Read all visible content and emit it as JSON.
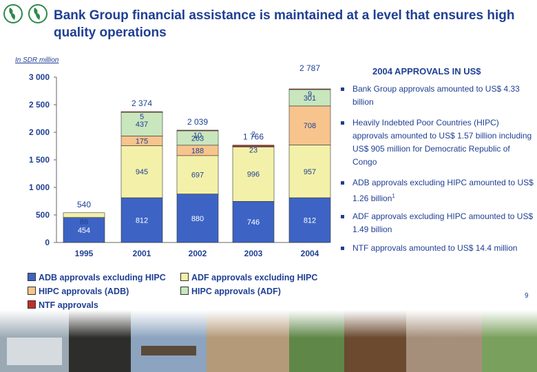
{
  "title": "Bank Group financial assistance is maintained at a level that ensures high quality operations",
  "chart_subtitle": "In SDR million",
  "page_number": "9",
  "chart_data": {
    "type": "bar",
    "stacked": true,
    "categories": [
      "1995",
      "2001",
      "2002",
      "2003",
      "2004"
    ],
    "ylim": [
      0,
      3000
    ],
    "yticks": [
      "0",
      "500",
      "1 000",
      "1 500",
      "2 000",
      "2 500",
      "3 000"
    ],
    "totals": [
      "540",
      "2 374",
      "2 039",
      "1 766",
      "2 787"
    ],
    "series": [
      {
        "name": "ADB approvals excluding HIPC",
        "color": "#3d64c4",
        "values": [
          454,
          812,
          880,
          746,
          812
        ],
        "labels": [
          "454",
          "812",
          "880",
          "746",
          "812"
        ]
      },
      {
        "name": "ADF approvals excluding HIPC",
        "color": "#f3f1a9",
        "values": [
          86,
          945,
          697,
          996,
          957
        ],
        "labels": [
          "86",
          "945",
          "697",
          "996",
          "957"
        ]
      },
      {
        "name": "HIPC approvals (ADB)",
        "color": "#f7c48d",
        "values": [
          0,
          175,
          188,
          2,
          708
        ],
        "labels": [
          "",
          "175",
          "188",
          "2",
          "708"
        ]
      },
      {
        "name": "HIPC approvals (ADF)",
        "color": "#c9e6bd",
        "values": [
          0,
          437,
          263,
          0,
          301
        ],
        "labels": [
          "",
          "437",
          "263",
          "",
          "301"
        ]
      },
      {
        "name": "NTF approvals",
        "color": "#c0302a",
        "values": [
          0,
          5,
          10,
          23,
          9
        ],
        "labels": [
          "",
          "5",
          "10",
          "23",
          "9"
        ]
      }
    ],
    "legend": [
      "ADB approvals excluding HIPC",
      "ADF approvals excluding HIPC",
      "HIPC approvals (ADB)",
      "HIPC approvals (ADF)",
      "NTF approvals"
    ],
    "legend_placement": "bottom"
  },
  "side_panel": {
    "heading": "2004 APPROVALS IN US$",
    "bullets": [
      {
        "text": "Bank Group approvals amounted  to US$ 4.33 billion",
        "sup": ""
      },
      {
        "text": "Heavily Indebted Poor Countries (HIPC) approvals amounted to US$ 1.57 billion including US$ 905 million for Democratic Republic of Congo",
        "sup": ""
      },
      {
        "text": "ADB approvals excluding HIPC amounted to US$ 1.26 billion",
        "sup": "1"
      },
      {
        "text": "ADF approvals excluding HIPC amounted to US$ 1.49 billion",
        "sup": ""
      },
      {
        "text": "NTF approvals amounted to US$ 14.4 million",
        "sup": ""
      }
    ]
  }
}
